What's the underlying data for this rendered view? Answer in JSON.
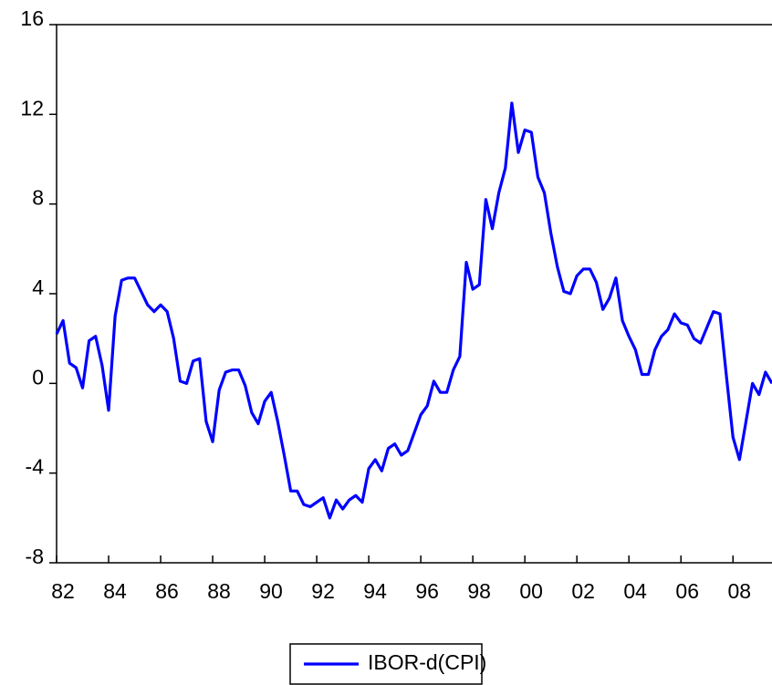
{
  "chart_data": {
    "type": "line",
    "x": [
      1982,
      1982.25,
      1982.5,
      1982.75,
      1983,
      1983.25,
      1983.5,
      1983.75,
      1984,
      1984.25,
      1984.5,
      1984.75,
      1985,
      1985.25,
      1985.5,
      1985.75,
      1986,
      1986.25,
      1986.5,
      1986.75,
      1987,
      1987.25,
      1987.5,
      1987.75,
      1988,
      1988.25,
      1988.5,
      1988.75,
      1989,
      1989.25,
      1989.5,
      1989.75,
      1990,
      1990.25,
      1990.5,
      1990.75,
      1991,
      1991.25,
      1991.5,
      1991.75,
      1992,
      1992.25,
      1992.5,
      1992.75,
      1993,
      1993.25,
      1993.5,
      1993.75,
      1994,
      1994.25,
      1994.5,
      1994.75,
      1995,
      1995.25,
      1995.5,
      1995.75,
      1996,
      1996.25,
      1996.5,
      1996.75,
      1997,
      1997.25,
      1997.5,
      1997.75,
      1998,
      1998.25,
      1998.5,
      1998.75,
      1999,
      1999.25,
      1999.5,
      1999.75,
      2000,
      2000.25,
      2000.5,
      2000.75,
      2001,
      2001.25,
      2001.5,
      2001.75,
      2002,
      2002.25,
      2002.5,
      2002.75,
      2003,
      2003.25,
      2003.5,
      2003.75,
      2004,
      2004.25,
      2004.5,
      2004.75,
      2005,
      2005.25,
      2005.5,
      2005.75,
      2006,
      2006.25,
      2006.5,
      2006.75,
      2007,
      2007.25,
      2007.5,
      2007.75,
      2008,
      2008.25,
      2008.5,
      2008.75,
      2009,
      2009.25,
      2009.5
    ],
    "series": [
      {
        "name": "IBOR-d(CPI)",
        "color": "#0000ff",
        "values": [
          2.2,
          2.8,
          0.9,
          0.7,
          -0.2,
          1.9,
          2.1,
          0.8,
          -1.2,
          3.0,
          4.6,
          4.7,
          4.7,
          4.1,
          3.5,
          3.2,
          3.5,
          3.2,
          2.0,
          0.1,
          0.0,
          1.0,
          1.1,
          -1.7,
          -2.6,
          -0.3,
          0.5,
          0.6,
          0.6,
          -0.1,
          -1.3,
          -1.8,
          -0.8,
          -0.4,
          -1.7,
          -3.2,
          -4.8,
          -4.8,
          -5.4,
          -5.5,
          -5.3,
          -5.1,
          -6.0,
          -5.2,
          -5.6,
          -5.2,
          -5.0,
          -5.3,
          -3.8,
          -3.4,
          -3.9,
          -2.9,
          -2.7,
          -3.2,
          -3.0,
          -2.2,
          -1.4,
          -1.0,
          0.1,
          -0.4,
          -0.4,
          0.6,
          1.2,
          5.4,
          4.2,
          4.4,
          8.2,
          6.9,
          8.5,
          9.6,
          12.5,
          10.3,
          11.3,
          11.2,
          9.2,
          8.5,
          6.7,
          5.2,
          4.1,
          4.0,
          4.8,
          5.1,
          5.1,
          4.5,
          3.3,
          3.8,
          4.7,
          2.8,
          2.1,
          1.5,
          0.4,
          0.4,
          1.5,
          2.1,
          2.4,
          3.1,
          2.7,
          2.6,
          2.0,
          1.8,
          2.5,
          3.2,
          3.1,
          0.3,
          -2.4,
          -3.4,
          -1.7,
          0.0,
          -0.5,
          0.5,
          0.0
        ]
      }
    ],
    "xlim": [
      1982,
      2009.5
    ],
    "xticks": [
      {
        "value": 1982,
        "label": "82"
      },
      {
        "value": 1984,
        "label": "84"
      },
      {
        "value": 1986,
        "label": "86"
      },
      {
        "value": 1988,
        "label": "88"
      },
      {
        "value": 1990,
        "label": "90"
      },
      {
        "value": 1992,
        "label": "92"
      },
      {
        "value": 1994,
        "label": "94"
      },
      {
        "value": 1996,
        "label": "96"
      },
      {
        "value": 1998,
        "label": "98"
      },
      {
        "value": 2000,
        "label": "00"
      },
      {
        "value": 2002,
        "label": "02"
      },
      {
        "value": 2004,
        "label": "04"
      },
      {
        "value": 2006,
        "label": "06"
      },
      {
        "value": 2008,
        "label": "08"
      }
    ],
    "ylim": [
      -8,
      16
    ],
    "yticks": [
      -8,
      -4,
      0,
      4,
      8,
      12,
      16
    ],
    "legend": "bottom"
  }
}
